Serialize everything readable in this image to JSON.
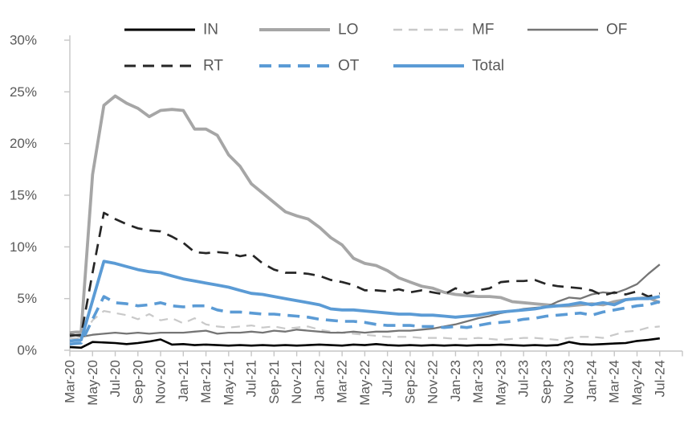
{
  "chart_data": {
    "type": "line",
    "title": "",
    "ylabel": "",
    "xlabel": "",
    "ylim": [
      0,
      30
    ],
    "ytick_step": 5,
    "ytick_labels": [
      "0%",
      "5%",
      "10%",
      "15%",
      "20%",
      "25%",
      "30%"
    ],
    "x_tick_labels": [
      "Mar-20",
      "May-20",
      "Jul-20",
      "Sep-20",
      "Nov-20",
      "Jan-21",
      "Mar-21",
      "May-21",
      "Jul-21",
      "Sep-21",
      "Nov-21",
      "Jan-22",
      "Mar-22",
      "May-22",
      "Jul-22",
      "Sep-22",
      "Nov-22",
      "Jan-23",
      "Mar-23",
      "May-23",
      "Jul-23",
      "Sep-23",
      "Nov-23",
      "Jan-24",
      "Mar-24",
      "May-24",
      "Jul-24"
    ],
    "x_note": "53 monthly data points Mar-20 through Jul-24; axis labels shown every 2nd month",
    "grid": false,
    "legend_position": "top, two rows",
    "axis_color": "#c6c6c6",
    "text_color": "#595959",
    "series": [
      {
        "name": "IN",
        "color": "#000000",
        "style": "solid",
        "values": [
          0.3,
          0.25,
          0.8,
          0.75,
          0.7,
          0.6,
          0.7,
          0.85,
          1.05,
          0.55,
          0.6,
          0.5,
          0.55,
          0.5,
          0.45,
          0.5,
          0.45,
          0.5,
          0.45,
          0.5,
          0.45,
          0.5,
          0.55,
          0.5,
          0.45,
          0.55,
          0.5,
          0.6,
          0.5,
          0.45,
          0.5,
          0.45,
          0.5,
          0.45,
          0.5,
          0.45,
          0.5,
          0.5,
          0.55,
          0.5,
          0.45,
          0.5,
          0.45,
          0.5,
          0.8,
          0.6,
          0.55,
          0.6,
          0.65,
          0.7,
          0.9,
          1.0,
          1.15
        ]
      },
      {
        "name": "LO",
        "color": "#a6a6a6",
        "style": "solid",
        "values": [
          1.7,
          1.8,
          17.0,
          23.7,
          24.6,
          23.9,
          23.4,
          22.6,
          23.2,
          23.3,
          23.2,
          21.4,
          21.4,
          20.8,
          18.9,
          17.8,
          16.1,
          15.2,
          14.3,
          13.4,
          13.0,
          12.7,
          11.9,
          10.9,
          10.2,
          8.9,
          8.4,
          8.2,
          7.7,
          7.0,
          6.6,
          6.2,
          6.0,
          5.6,
          5.4,
          5.3,
          5.2,
          5.2,
          5.1,
          4.7,
          4.6,
          4.5,
          4.4,
          4.3,
          4.3,
          4.4,
          4.5,
          4.4,
          4.7,
          4.9,
          5.0,
          5.1,
          4.6
        ]
      },
      {
        "name": "MF",
        "color": "#c9c9c9",
        "style": "dashed",
        "values": [
          1.2,
          1.1,
          2.9,
          3.8,
          3.6,
          3.4,
          3.0,
          3.5,
          2.9,
          3.1,
          2.6,
          3.1,
          2.5,
          2.3,
          2.2,
          2.3,
          2.4,
          2.2,
          2.3,
          2.1,
          2.2,
          2.3,
          2.0,
          1.8,
          1.7,
          1.6,
          1.5,
          1.4,
          1.3,
          1.3,
          1.3,
          1.2,
          1.2,
          1.2,
          1.1,
          1.1,
          1.2,
          1.1,
          1.0,
          1.1,
          1.2,
          1.2,
          1.1,
          1.0,
          1.2,
          1.3,
          1.3,
          1.2,
          1.5,
          1.8,
          1.9,
          2.2,
          2.3
        ]
      },
      {
        "name": "OF",
        "color": "#757575",
        "style": "solid",
        "values": [
          1.6,
          1.3,
          1.5,
          1.6,
          1.7,
          1.6,
          1.7,
          1.6,
          1.7,
          1.7,
          1.7,
          1.8,
          1.9,
          1.6,
          1.7,
          1.7,
          1.8,
          1.7,
          1.9,
          1.8,
          2.0,
          1.9,
          1.8,
          1.7,
          1.7,
          1.8,
          1.7,
          1.8,
          1.8,
          1.9,
          1.9,
          2.0,
          2.1,
          2.3,
          2.5,
          2.8,
          3.1,
          3.3,
          3.6,
          3.8,
          4.0,
          4.1,
          4.2,
          4.7,
          5.1,
          5.0,
          5.4,
          5.6,
          5.5,
          5.9,
          6.4,
          7.4,
          8.3
        ]
      },
      {
        "name": "RT",
        "color": "#262626",
        "style": "dashed",
        "values": [
          1.4,
          1.5,
          7.5,
          13.3,
          12.7,
          12.2,
          11.8,
          11.6,
          11.5,
          11.0,
          10.4,
          9.5,
          9.4,
          9.5,
          9.4,
          9.1,
          9.3,
          8.4,
          7.8,
          7.5,
          7.5,
          7.4,
          7.2,
          6.8,
          6.6,
          6.3,
          5.8,
          5.8,
          5.7,
          5.9,
          5.6,
          5.8,
          5.6,
          5.4,
          6.0,
          5.5,
          5.8,
          6.0,
          6.6,
          6.7,
          6.7,
          6.8,
          6.4,
          6.2,
          6.1,
          6.0,
          5.8,
          5.3,
          5.6,
          5.4,
          5.7,
          5.2,
          5.5
        ]
      },
      {
        "name": "OT",
        "color": "#5b9bd5",
        "style": "dashed",
        "values": [
          0.6,
          0.7,
          3.0,
          5.2,
          4.6,
          4.5,
          4.3,
          4.4,
          4.6,
          4.3,
          4.2,
          4.3,
          4.3,
          3.9,
          3.7,
          3.7,
          3.6,
          3.5,
          3.5,
          3.4,
          3.3,
          3.2,
          3.0,
          2.9,
          2.8,
          2.8,
          2.7,
          2.5,
          2.4,
          2.4,
          2.4,
          2.3,
          2.3,
          2.2,
          2.3,
          2.2,
          2.4,
          2.6,
          2.7,
          2.8,
          3.0,
          3.1,
          3.3,
          3.4,
          3.5,
          3.6,
          3.4,
          3.7,
          3.9,
          4.1,
          4.3,
          4.4,
          4.7
        ]
      },
      {
        "name": "Total",
        "color": "#5b9bd5",
        "style": "solid",
        "values": [
          0.9,
          1.0,
          4.8,
          8.6,
          8.4,
          8.1,
          7.8,
          7.6,
          7.5,
          7.2,
          6.9,
          6.7,
          6.5,
          6.3,
          6.1,
          5.8,
          5.5,
          5.4,
          5.2,
          5.0,
          4.8,
          4.6,
          4.4,
          4.0,
          3.9,
          3.9,
          3.8,
          3.7,
          3.6,
          3.5,
          3.5,
          3.4,
          3.4,
          3.3,
          3.2,
          3.3,
          3.4,
          3.6,
          3.7,
          3.8,
          3.9,
          4.0,
          4.2,
          4.3,
          4.4,
          4.6,
          4.4,
          4.6,
          4.4,
          4.9,
          5.0,
          5.0,
          5.2
        ]
      }
    ]
  }
}
